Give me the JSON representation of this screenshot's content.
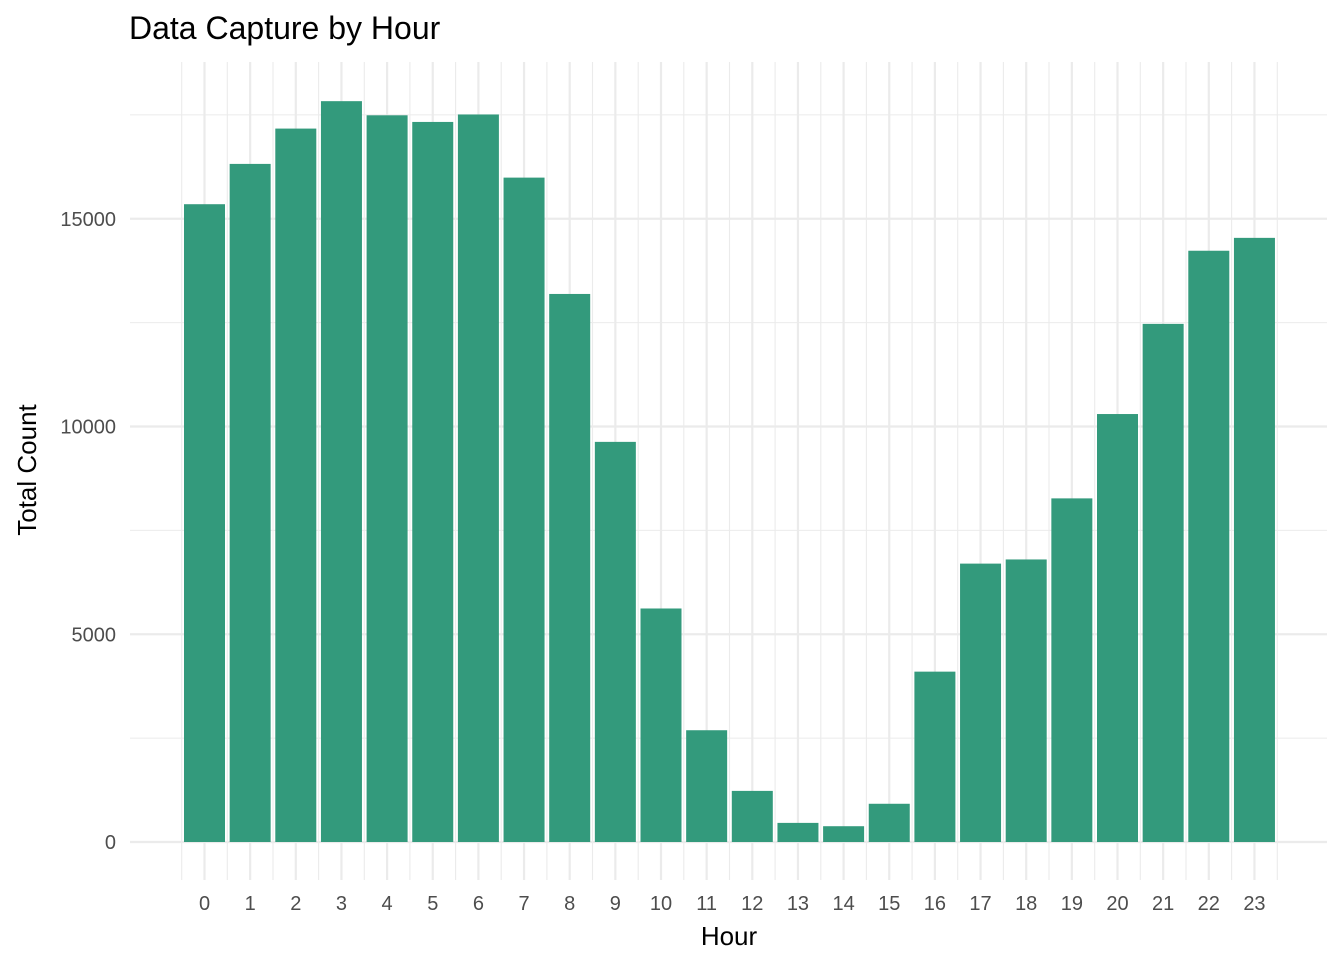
{
  "chart_data": {
    "type": "bar",
    "title": "Data Capture by Hour",
    "xlabel": "Hour",
    "ylabel": "Total Count",
    "categories": [
      "0",
      "1",
      "2",
      "3",
      "4",
      "5",
      "6",
      "7",
      "8",
      "9",
      "10",
      "11",
      "12",
      "13",
      "14",
      "15",
      "16",
      "17",
      "18",
      "19",
      "20",
      "21",
      "22",
      "23"
    ],
    "values": [
      15350,
      16320,
      17170,
      17830,
      17490,
      17330,
      17510,
      15990,
      13190,
      9630,
      5620,
      2690,
      1230,
      460,
      380,
      920,
      4100,
      6700,
      6800,
      8270,
      10300,
      12470,
      14230,
      14540
    ],
    "yticks": [
      0,
      5000,
      10000,
      15000
    ],
    "ylim": [
      -800,
      18700
    ],
    "bar_color": "#339A7C",
    "grid": true,
    "legend": "none"
  }
}
